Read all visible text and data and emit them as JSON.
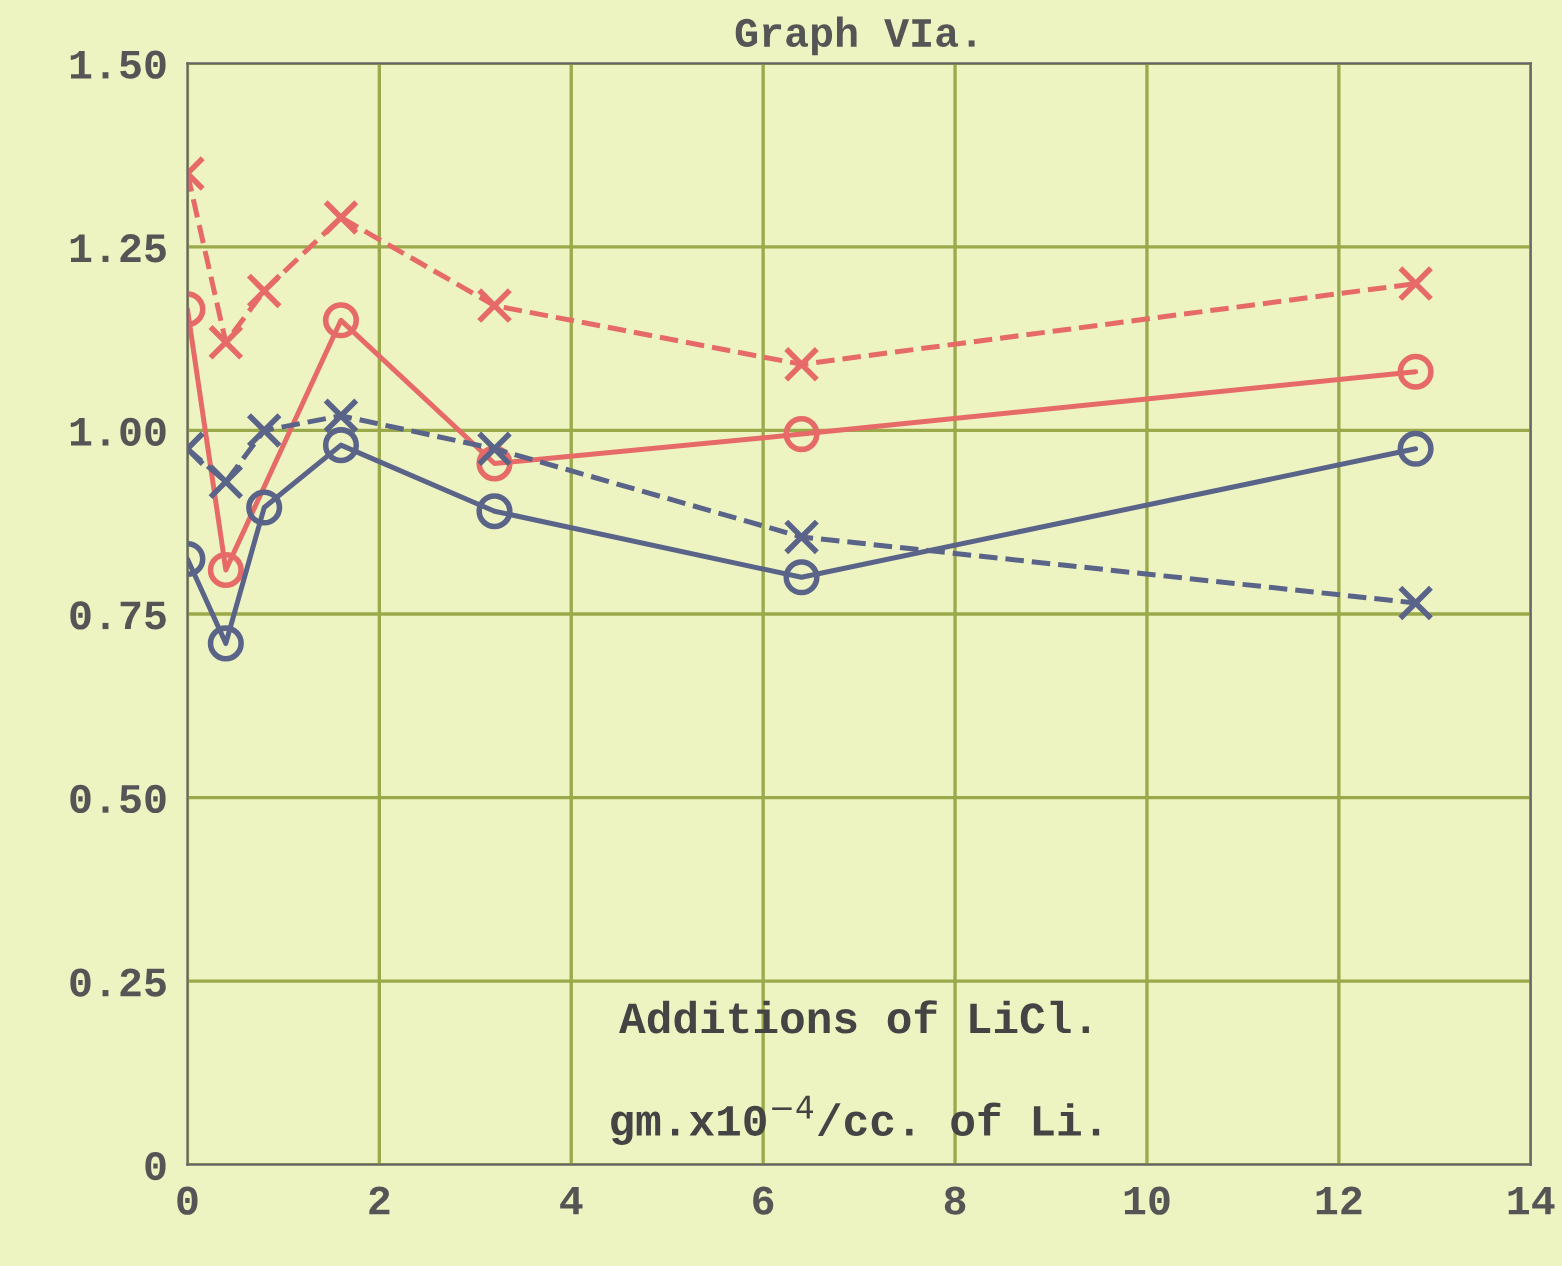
{
  "chart_data": {
    "type": "line",
    "title": "Graph VIa.",
    "x": [
      0,
      0.4,
      0.8,
      1.6,
      3.2,
      6.4,
      12.8
    ],
    "series": [
      {
        "color": "#e66a68",
        "marker": "cross",
        "line_style": "dashed",
        "values": [
          1.35,
          1.12,
          1.19,
          1.29,
          1.17,
          1.09,
          1.2
        ]
      },
      {
        "color": "#e66a68",
        "marker": "circle",
        "line_style": "solid",
        "values": [
          1.165,
          0.81,
          null,
          1.15,
          0.955,
          0.995,
          1.08
        ]
      },
      {
        "color": "#5a6488",
        "marker": "cross",
        "line_style": "dashed",
        "values": [
          0.975,
          0.93,
          1.0,
          1.02,
          0.975,
          0.855,
          0.765
        ]
      },
      {
        "color": "#5a6488",
        "marker": "circle",
        "line_style": "solid",
        "values": [
          0.825,
          0.71,
          0.895,
          0.98,
          0.89,
          0.8,
          0.975
        ]
      }
    ],
    "xlim": [
      0,
      14
    ],
    "ylim": [
      0,
      1.5
    ],
    "xticks": [
      0,
      2,
      4,
      6,
      8,
      10,
      12,
      14
    ],
    "yticks": [
      {
        "value": 0,
        "label": "0"
      },
      {
        "value": 0.25,
        "label": "0.25"
      },
      {
        "value": 0.5,
        "label": "0.50"
      },
      {
        "value": 0.75,
        "label": "0.75"
      },
      {
        "value": 1.0,
        "label": "1.00"
      },
      {
        "value": 1.25,
        "label": "1.25"
      },
      {
        "value": 1.5,
        "label": "1.50"
      }
    ],
    "grid": true,
    "annotations": [
      "Additions of LiCl.",
      "gm.x10$^{−4}$/cc. of Li."
    ]
  }
}
